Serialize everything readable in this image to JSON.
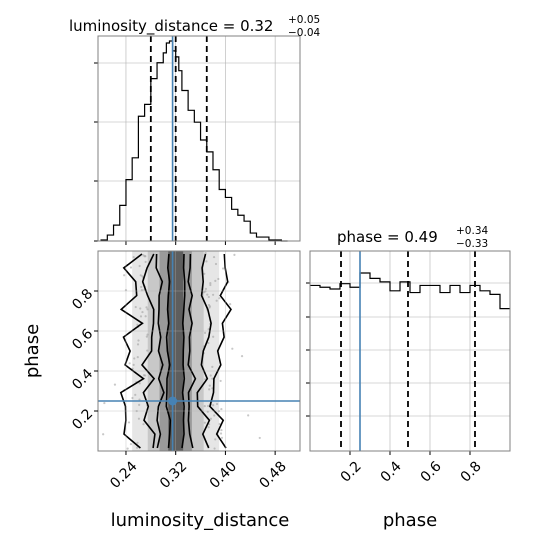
{
  "chart_data": [
    {
      "type": "histogram",
      "panel": "top-left",
      "title_param": "luminosity_distance",
      "title_median": "0.32",
      "title_plus": "+0.05",
      "title_minus": "−0.04",
      "xlim": [
        0.195,
        0.52
      ],
      "bin_edges": [
        0.2,
        0.21,
        0.22,
        0.23,
        0.24,
        0.25,
        0.26,
        0.27,
        0.28,
        0.29,
        0.3,
        0.305,
        0.31,
        0.315,
        0.32,
        0.325,
        0.33,
        0.34,
        0.35,
        0.36,
        0.37,
        0.38,
        0.39,
        0.4,
        0.41,
        0.42,
        0.43,
        0.44,
        0.45,
        0.46,
        0.47,
        0.48,
        0.49,
        0.5
      ],
      "counts": [
        0.5,
        3,
        8,
        18,
        31,
        42,
        63,
        69,
        82,
        90,
        95,
        100,
        101,
        96,
        93,
        86,
        76,
        66,
        60,
        51,
        45,
        36,
        26,
        22,
        16,
        13,
        10,
        4,
        2,
        2,
        0.5,
        0.5,
        0
      ],
      "quantile_lines": [
        0.28,
        0.32,
        0.37
      ],
      "truth": 0.315,
      "grid": true
    },
    {
      "type": "histogram",
      "panel": "bottom-right",
      "title_param": "phase",
      "title_median": "0.49",
      "title_plus": "+0.34",
      "title_minus": "−0.33",
      "xlim": [
        0,
        1
      ],
      "xticks": [
        "0.2",
        "0.4",
        "0.6",
        "0.8"
      ],
      "xlabel": "phase",
      "bin_edges": [
        0,
        0.05,
        0.1,
        0.15,
        0.2,
        0.25,
        0.3,
        0.35,
        0.4,
        0.45,
        0.5,
        0.55,
        0.6,
        0.65,
        0.7,
        0.75,
        0.8,
        0.85,
        0.9,
        0.95,
        1.0
      ],
      "counts": [
        93,
        92,
        91,
        94,
        92,
        100,
        97,
        95,
        90,
        95,
        89,
        93,
        93,
        89,
        93,
        89,
        93,
        90,
        88,
        80
      ],
      "quantile_lines": [
        0.155,
        0.49,
        0.825
      ],
      "truth": 0.25,
      "grid": true
    },
    {
      "type": "scatter",
      "panel": "bottom-left",
      "xlabel": "luminosity_distance",
      "ylabel": "phase",
      "xlim": [
        0.195,
        0.52
      ],
      "ylim": [
        0,
        1
      ],
      "xticks": [
        "0.24",
        "0.32",
        "0.40",
        "0.48"
      ],
      "yticks": [
        "0.2",
        "0.4",
        "0.6",
        "0.8"
      ],
      "truth": [
        0.315,
        0.25
      ],
      "contour_x_widths": [
        0.012,
        0.026,
        0.045,
        0.07
      ],
      "grid": true
    }
  ],
  "colors": {
    "truth": "#4682b4",
    "hist": "#000000",
    "grid": "#b0b0b0",
    "frame": "#808080"
  }
}
